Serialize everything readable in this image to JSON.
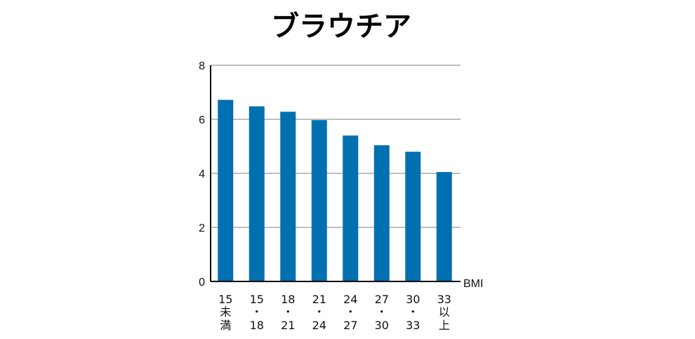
{
  "chart_data": {
    "type": "bar",
    "title": "ブラウチア",
    "xlabel": "BMI",
    "ylabel": "",
    "ylim": [
      0,
      8
    ],
    "yticks": [
      "0",
      "2",
      "4",
      "6",
      "8"
    ],
    "grid": true,
    "categories": [
      [
        "15",
        "未",
        "満"
      ],
      [
        "15",
        "・",
        "18"
      ],
      [
        "18",
        "・",
        "21"
      ],
      [
        "21",
        "・",
        "24"
      ],
      [
        "24",
        "・",
        "27"
      ],
      [
        "27",
        "・",
        "30"
      ],
      [
        "30",
        "・",
        "33"
      ],
      [
        "33",
        "以",
        "上"
      ]
    ],
    "values": [
      6.72,
      6.48,
      6.28,
      5.97,
      5.4,
      5.04,
      4.8,
      4.05
    ],
    "bar_color": "#0070b0",
    "grid_color": "#999999",
    "axis_color": "#000000"
  }
}
